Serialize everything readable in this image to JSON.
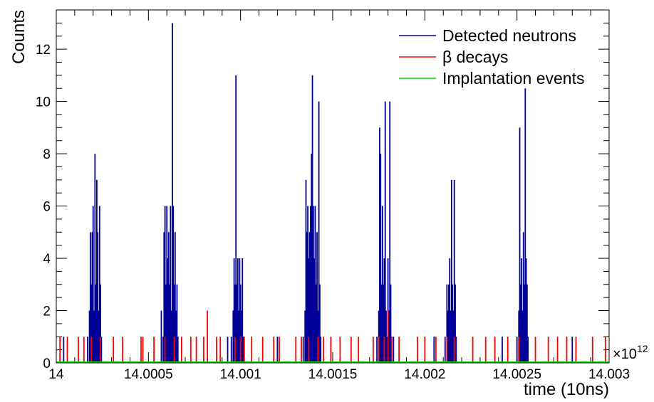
{
  "chart_data": {
    "type": "bar",
    "xlabel": "time (10ns)",
    "ylabel": "Counts",
    "x_multiplier_label": "×10",
    "x_multiplier_exponent": "12",
    "xlim": [
      14.0,
      14.003
    ],
    "ylim": [
      0,
      13.5
    ],
    "x_ticks": [
      14.0,
      14.0005,
      14.001,
      14.0015,
      14.002,
      14.0025,
      14.003
    ],
    "x_tick_labels": [
      "14",
      "14.0005",
      "14.001",
      "14.0015",
      "14.002",
      "14.0025",
      "14.003"
    ],
    "y_ticks": [
      0,
      2,
      4,
      6,
      8,
      10,
      12
    ],
    "y_tick_labels": [
      "0",
      "2",
      "4",
      "6",
      "8",
      "10",
      "12"
    ],
    "legend_position": "top-right",
    "grid": false,
    "series": [
      {
        "name": "Detected neutrons",
        "color": "#000099",
        "points": [
          [
            14.00017,
            1
          ],
          [
            14.00018,
            2
          ],
          [
            14.000185,
            5
          ],
          [
            14.00019,
            3
          ],
          [
            14.000195,
            5
          ],
          [
            14.0002,
            6
          ],
          [
            14.000205,
            2
          ],
          [
            14.00021,
            8
          ],
          [
            14.000215,
            3
          ],
          [
            14.00022,
            7
          ],
          [
            14.000225,
            5
          ],
          [
            14.00023,
            2
          ],
          [
            14.000235,
            6
          ],
          [
            14.00024,
            3
          ],
          [
            14.000245,
            1
          ],
          [
            14.00057,
            2
          ],
          [
            14.00058,
            1
          ],
          [
            14.000585,
            5
          ],
          [
            14.00059,
            6
          ],
          [
            14.000595,
            3
          ],
          [
            14.0006,
            6
          ],
          [
            14.000605,
            4
          ],
          [
            14.00061,
            5
          ],
          [
            14.000615,
            3
          ],
          [
            14.00062,
            6
          ],
          [
            14.000625,
            2
          ],
          [
            14.00063,
            13
          ],
          [
            14.000635,
            6
          ],
          [
            14.00064,
            3
          ],
          [
            14.000645,
            5
          ],
          [
            14.00065,
            2
          ],
          [
            14.000655,
            3
          ],
          [
            14.00066,
            1
          ],
          [
            14.00095,
            1
          ],
          [
            14.00096,
            2
          ],
          [
            14.000965,
            4
          ],
          [
            14.00097,
            3
          ],
          [
            14.000975,
            11
          ],
          [
            14.00098,
            3
          ],
          [
            14.000985,
            4
          ],
          [
            14.00099,
            2
          ],
          [
            14.000995,
            4
          ],
          [
            14.001,
            3
          ],
          [
            14.001005,
            2
          ],
          [
            14.00101,
            4
          ],
          [
            14.001015,
            1
          ],
          [
            14.00134,
            1
          ],
          [
            14.00135,
            2
          ],
          [
            14.001355,
            7
          ],
          [
            14.00136,
            5
          ],
          [
            14.001365,
            6
          ],
          [
            14.00137,
            4
          ],
          [
            14.001375,
            5
          ],
          [
            14.00138,
            6
          ],
          [
            14.001385,
            8
          ],
          [
            14.00139,
            11
          ],
          [
            14.001395,
            6
          ],
          [
            14.0014,
            4
          ],
          [
            14.001405,
            6
          ],
          [
            14.00141,
            3
          ],
          [
            14.001415,
            5
          ],
          [
            14.00142,
            2
          ],
          [
            14.001425,
            10
          ],
          [
            14.00143,
            3
          ],
          [
            14.001435,
            1
          ],
          [
            14.00174,
            1
          ],
          [
            14.00175,
            2
          ],
          [
            14.001755,
            9
          ],
          [
            14.00176,
            8
          ],
          [
            14.001765,
            3
          ],
          [
            14.00177,
            6
          ],
          [
            14.001775,
            3
          ],
          [
            14.00178,
            4
          ],
          [
            14.001785,
            10
          ],
          [
            14.00179,
            2
          ],
          [
            14.001795,
            1
          ],
          [
            14.0018,
            4
          ],
          [
            14.001805,
            2
          ],
          [
            14.00181,
            10
          ],
          [
            14.001815,
            3
          ],
          [
            14.00182,
            1
          ],
          [
            14.00183,
            1
          ],
          [
            14.00211,
            1
          ],
          [
            14.00212,
            3
          ],
          [
            14.002125,
            2
          ],
          [
            14.00213,
            3
          ],
          [
            14.002135,
            4
          ],
          [
            14.00214,
            2
          ],
          [
            14.002145,
            7
          ],
          [
            14.00215,
            3
          ],
          [
            14.002155,
            2
          ],
          [
            14.00216,
            7
          ],
          [
            14.002165,
            3
          ],
          [
            14.00217,
            1
          ],
          [
            14.0025,
            1
          ],
          [
            14.00251,
            2
          ],
          [
            14.002515,
            9
          ],
          [
            14.00252,
            3
          ],
          [
            14.002525,
            4
          ],
          [
            14.00253,
            2
          ],
          [
            14.002535,
            5
          ],
          [
            14.00254,
            3
          ],
          [
            14.002545,
            10.5
          ],
          [
            14.00255,
            4
          ],
          [
            14.002555,
            3
          ],
          [
            14.00256,
            1
          ],
          [
            14.00004,
            1
          ],
          [
            14.00062,
            1
          ],
          [
            14.00093,
            1
          ],
          [
            14.0012,
            1
          ],
          [
            14.00205,
            1
          ],
          [
            14.00242,
            1
          ],
          [
            14.0028,
            1
          ]
        ]
      },
      {
        "name": "β decays",
        "color": "#ff0000",
        "points": [
          [
            14.00002,
            1
          ],
          [
            14.00006,
            1
          ],
          [
            14.00012,
            1
          ],
          [
            14.00015,
            1
          ],
          [
            14.00019,
            1
          ],
          [
            14.00024,
            1
          ],
          [
            14.00031,
            1
          ],
          [
            14.00036,
            1
          ],
          [
            14.00046,
            1
          ],
          [
            14.00047,
            1
          ],
          [
            14.00053,
            1
          ],
          [
            14.00059,
            1
          ],
          [
            14.00064,
            1
          ],
          [
            14.00068,
            1
          ],
          [
            14.00073,
            1
          ],
          [
            14.00076,
            1
          ],
          [
            14.0008,
            1
          ],
          [
            14.00082,
            2
          ],
          [
            14.00087,
            1
          ],
          [
            14.00089,
            1
          ],
          [
            14.00097,
            1
          ],
          [
            14.001,
            1
          ],
          [
            14.00102,
            1
          ],
          [
            14.00106,
            1
          ],
          [
            14.00112,
            1
          ],
          [
            14.00118,
            1
          ],
          [
            14.00121,
            1
          ],
          [
            14.0013,
            1
          ],
          [
            14.00133,
            1
          ],
          [
            14.00137,
            1
          ],
          [
            14.00142,
            1
          ],
          [
            14.00145,
            1
          ],
          [
            14.00149,
            1
          ],
          [
            14.00154,
            1
          ],
          [
            14.0016,
            1
          ],
          [
            14.00164,
            1
          ],
          [
            14.00172,
            1
          ],
          [
            14.00175,
            1
          ],
          [
            14.00178,
            1
          ],
          [
            14.0018,
            2
          ],
          [
            14.00182,
            1
          ],
          [
            14.00186,
            1
          ],
          [
            14.00196,
            1
          ],
          [
            14.002,
            1
          ],
          [
            14.00206,
            1
          ],
          [
            14.00212,
            1
          ],
          [
            14.00216,
            1
          ],
          [
            14.00226,
            1
          ],
          [
            14.00233,
            1
          ],
          [
            14.00238,
            1
          ],
          [
            14.00245,
            1
          ],
          [
            14.00251,
            1
          ],
          [
            14.0026,
            1
          ],
          [
            14.00267,
            1
          ],
          [
            14.00272,
            1
          ],
          [
            14.00277,
            1
          ],
          [
            14.00282,
            1
          ],
          [
            14.00291,
            1
          ],
          [
            14.00298,
            1
          ]
        ]
      },
      {
        "name": "Implantation events",
        "color": "#00dd00",
        "points": []
      }
    ]
  }
}
